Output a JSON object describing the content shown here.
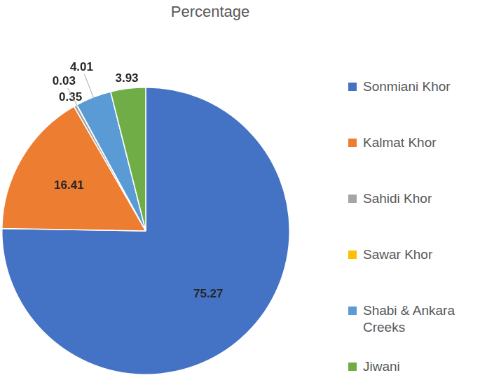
{
  "chart_data": {
    "type": "pie",
    "title": "Percentage",
    "categories": [
      "Sonmiani Khor",
      "Kalmat Khor",
      "Sahidi Khor",
      "Sawar Khor",
      "Shabi & Ankara Creeks",
      "Jiwani"
    ],
    "values": [
      75.27,
      16.41,
      0.35,
      0.03,
      4.01,
      3.93
    ],
    "colors": [
      "#4472c4",
      "#ed7d31",
      "#a5a5a5",
      "#ffc000",
      "#5b9bd5",
      "#70ad47"
    ],
    "data_labels": true,
    "legend": "right"
  }
}
